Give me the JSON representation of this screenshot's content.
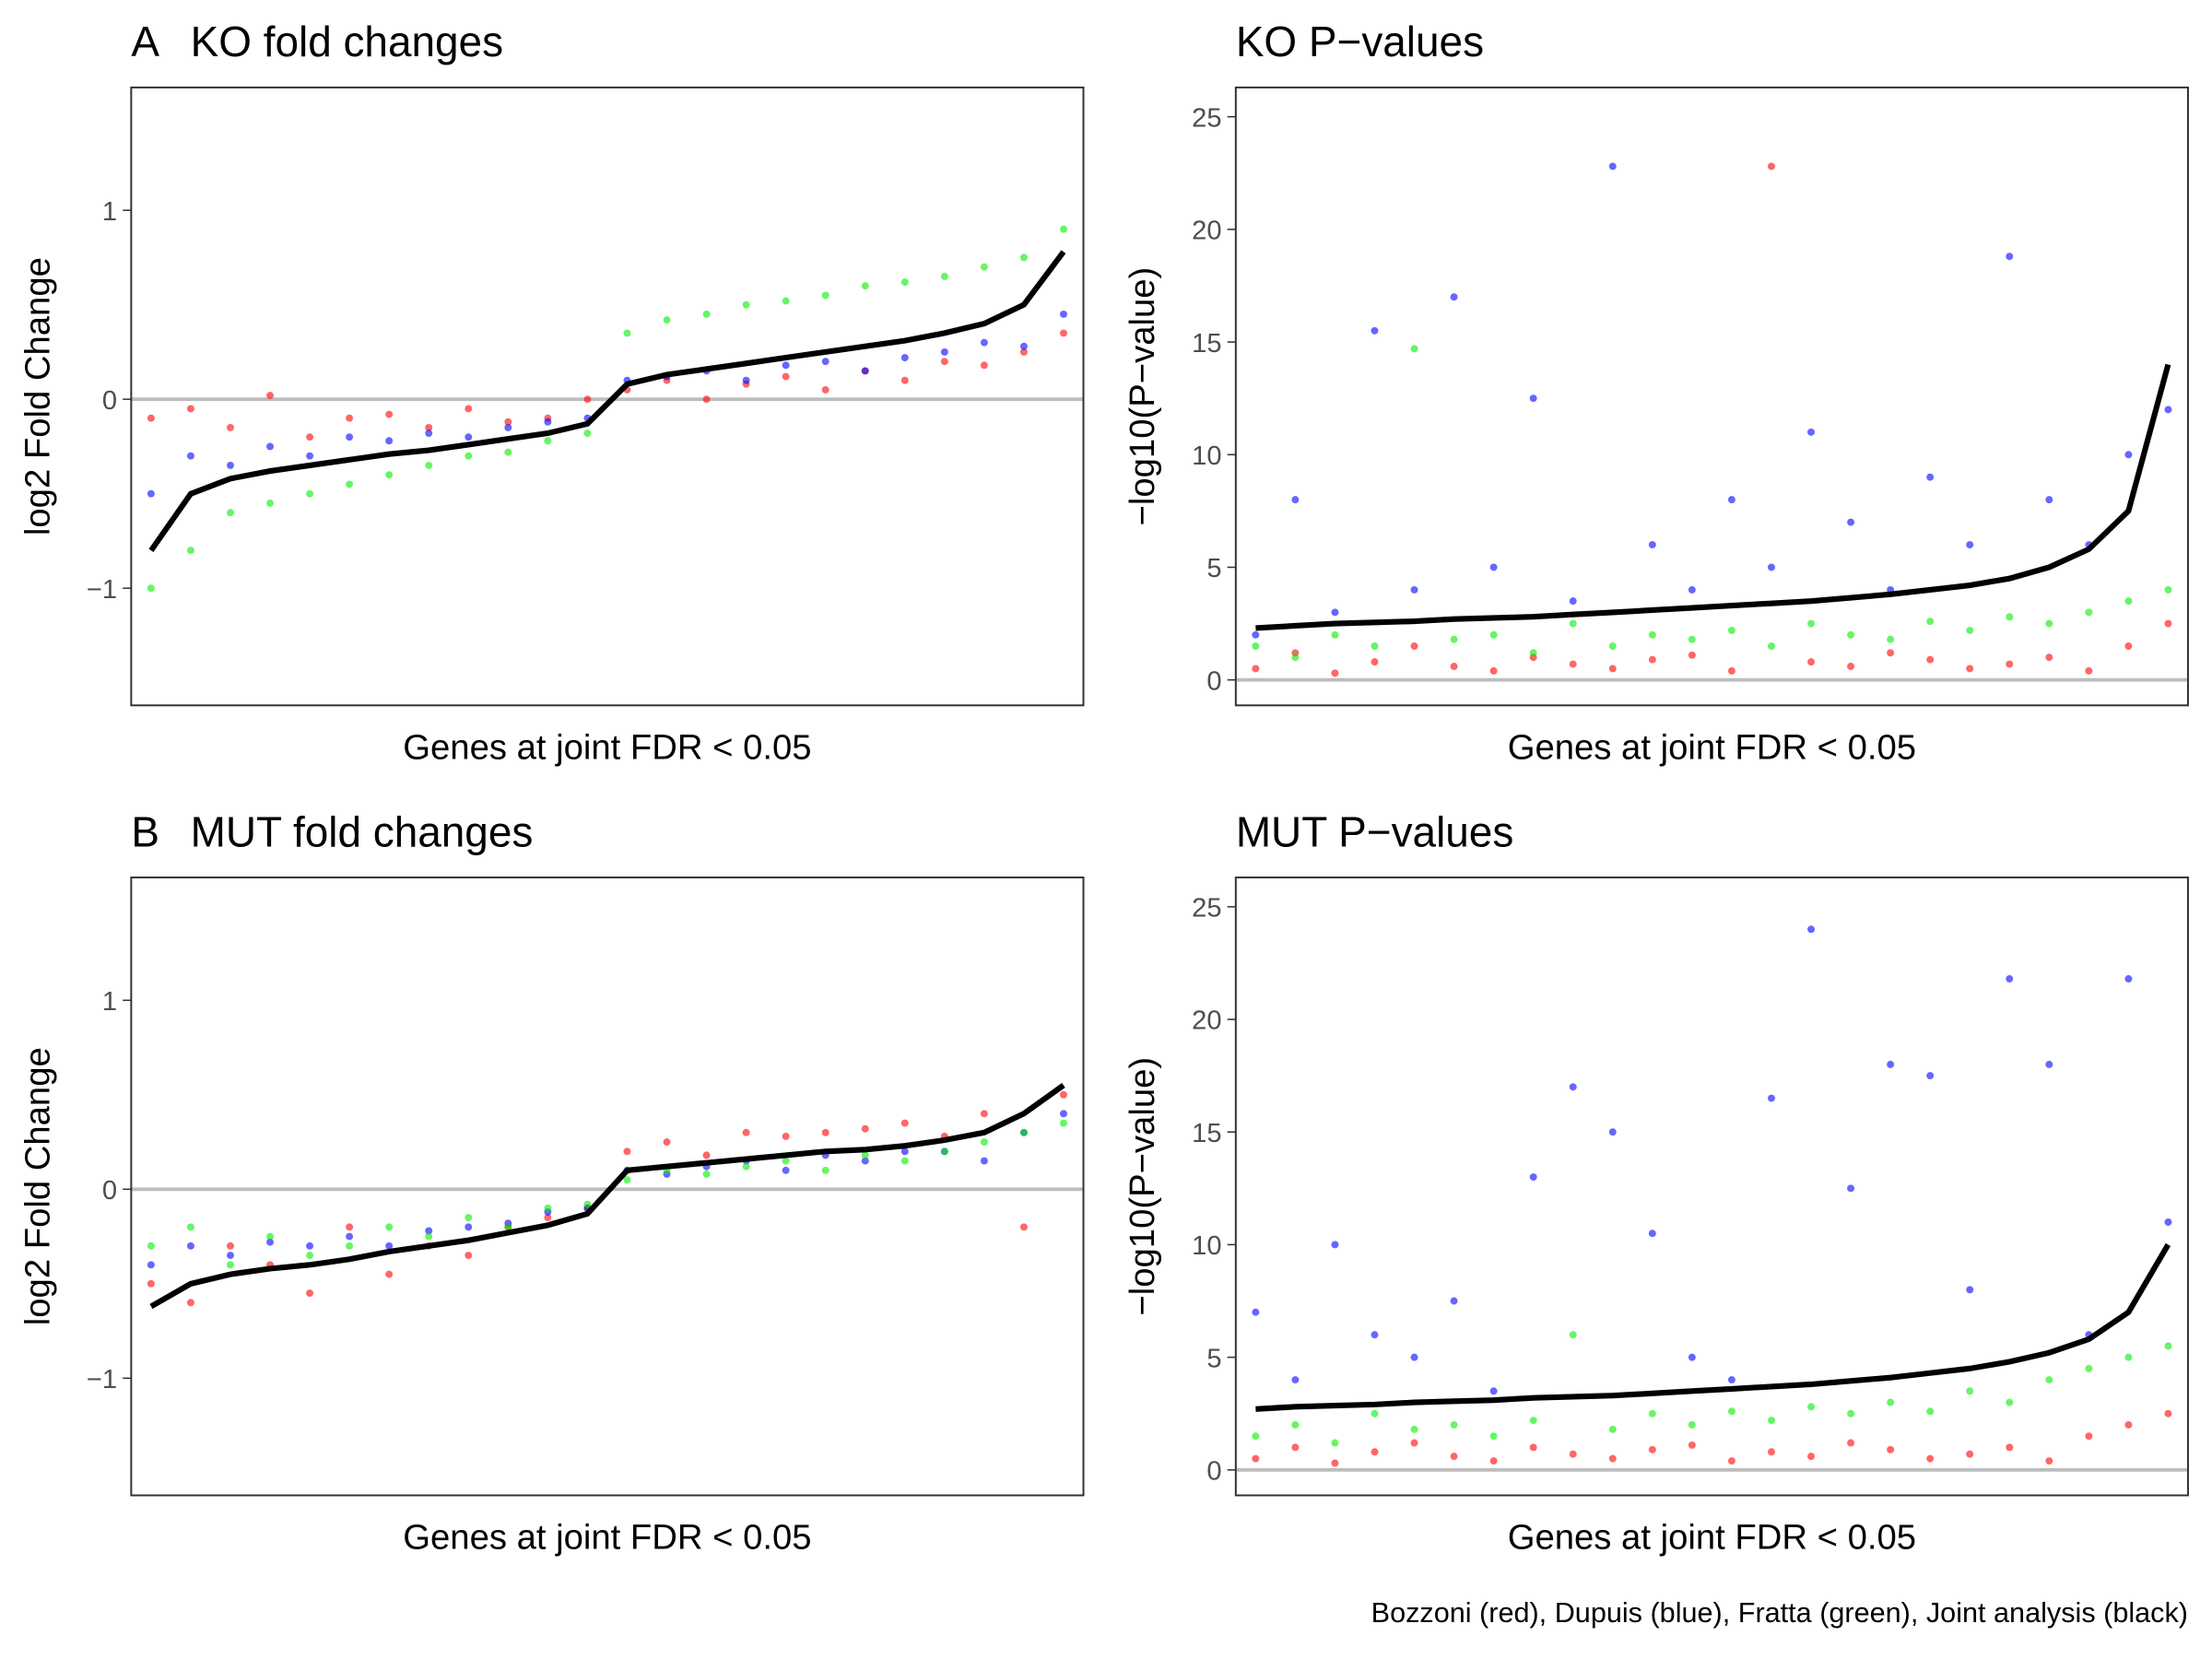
{
  "chart_data": [
    {
      "type": "scatter",
      "tag": "A",
      "title": "KO fold changes",
      "x_label": "Genes at joint FDR < 0.05",
      "y_label": "log2 Fold Change",
      "x": [
        1,
        2,
        3,
        4,
        5,
        6,
        7,
        8,
        9,
        10,
        11,
        12,
        13,
        14,
        15,
        16,
        17,
        18,
        19,
        20,
        21,
        22,
        23,
        24
      ],
      "xlim": [
        0.5,
        24.5
      ],
      "ylim": [
        -1.62,
        1.65
      ],
      "yticks": [
        {
          "value": -1,
          "label": "−1"
        },
        0,
        1
      ],
      "hline": 0,
      "series": [
        {
          "color": "#ff0000",
          "values": [
            -0.1,
            -0.05,
            -0.15,
            0.02,
            -0.2,
            -0.1,
            -0.08,
            -0.15,
            -0.05,
            -0.12,
            -0.1,
            0.0,
            0.05,
            0.1,
            0.0,
            0.08,
            0.12,
            0.05,
            0.15,
            0.1,
            0.2,
            0.18,
            0.25,
            0.35
          ]
        },
        {
          "color": "#0000ff",
          "values": [
            -0.5,
            -0.3,
            -0.35,
            -0.25,
            -0.3,
            -0.2,
            -0.22,
            -0.18,
            -0.2,
            -0.15,
            -0.12,
            -0.1,
            0.1,
            0.12,
            0.15,
            0.1,
            0.18,
            0.2,
            0.15,
            0.22,
            0.25,
            0.3,
            0.28,
            0.45
          ]
        },
        {
          "color": "#00ee00",
          "values": [
            -1.0,
            -0.8,
            -0.6,
            -0.55,
            -0.5,
            -0.45,
            -0.4,
            -0.35,
            -0.3,
            -0.28,
            -0.22,
            -0.18,
            0.35,
            0.42,
            0.45,
            0.5,
            0.52,
            0.55,
            0.6,
            0.62,
            0.65,
            0.7,
            0.75,
            0.9
          ]
        },
        {
          "color": "#000000",
          "line": true,
          "values": [
            -0.8,
            -0.5,
            -0.42,
            -0.38,
            -0.35,
            -0.32,
            -0.29,
            -0.27,
            -0.24,
            -0.21,
            -0.18,
            -0.13,
            0.08,
            0.13,
            0.16,
            0.19,
            0.22,
            0.25,
            0.28,
            0.31,
            0.35,
            0.4,
            0.5,
            0.78
          ]
        }
      ]
    },
    {
      "type": "scatter",
      "title": "KO P−values",
      "x_label": "Genes at joint FDR < 0.05",
      "y_label": "−log10(P−value)",
      "x": [
        1,
        2,
        3,
        4,
        5,
        6,
        7,
        8,
        9,
        10,
        11,
        12,
        13,
        14,
        15,
        16,
        17,
        18,
        19,
        20,
        21,
        22,
        23,
        24
      ],
      "xlim": [
        0.5,
        24.5
      ],
      "ylim": [
        -1.13,
        26.3
      ],
      "yticks": [
        0,
        5,
        10,
        15,
        20,
        25
      ],
      "hline": 0,
      "series": [
        {
          "color": "#ff0000",
          "values": [
            0.5,
            1.2,
            0.3,
            0.8,
            1.5,
            0.6,
            0.4,
            1.0,
            0.7,
            0.5,
            0.9,
            1.1,
            0.4,
            22.8,
            0.8,
            0.6,
            1.2,
            0.9,
            0.5,
            0.7,
            1.0,
            0.4,
            1.5,
            2.5
          ]
        },
        {
          "color": "#0000ff",
          "values": [
            2,
            8,
            3,
            15.5,
            4,
            17,
            5,
            12.5,
            3.5,
            22.8,
            6,
            4,
            8,
            5,
            11,
            7,
            4,
            9,
            6,
            18.8,
            8,
            6,
            10,
            12
          ]
        },
        {
          "color": "#00ee00",
          "values": [
            1.5,
            1,
            2,
            1.5,
            14.7,
            1.8,
            2,
            1.2,
            2.5,
            1.5,
            2,
            1.8,
            2.2,
            1.5,
            2.5,
            2,
            1.8,
            2.6,
            2.2,
            2.8,
            2.5,
            3,
            3.5,
            4
          ]
        },
        {
          "color": "#000000",
          "line": true,
          "values": [
            2.3,
            2.4,
            2.5,
            2.55,
            2.6,
            2.7,
            2.75,
            2.8,
            2.9,
            3.0,
            3.1,
            3.2,
            3.3,
            3.4,
            3.5,
            3.65,
            3.8,
            4.0,
            4.2,
            4.5,
            5.0,
            5.8,
            7.5,
            14
          ]
        }
      ]
    },
    {
      "type": "scatter",
      "tag": "B",
      "title": "MUT fold changes",
      "x_label": "Genes at joint FDR < 0.05",
      "y_label": "log2 Fold Change",
      "x": [
        1,
        2,
        3,
        4,
        5,
        6,
        7,
        8,
        9,
        10,
        11,
        12,
        13,
        14,
        15,
        16,
        17,
        18,
        19,
        20,
        21,
        22,
        23,
        24
      ],
      "xlim": [
        0.5,
        24.5
      ],
      "ylim": [
        -1.62,
        1.65
      ],
      "yticks": [
        {
          "value": -1,
          "label": "−1"
        },
        0,
        1
      ],
      "hline": 0,
      "series": [
        {
          "color": "#ff0000",
          "values": [
            -0.5,
            -0.6,
            -0.3,
            -0.4,
            -0.55,
            -0.2,
            -0.45,
            -0.3,
            -0.35,
            -0.2,
            -0.15,
            -0.1,
            0.2,
            0.25,
            0.18,
            0.3,
            0.28,
            0.3,
            0.32,
            0.35,
            0.28,
            0.4,
            -0.2,
            0.5
          ]
        },
        {
          "color": "#0000ff",
          "values": [
            -0.4,
            -0.3,
            -0.35,
            -0.28,
            -0.3,
            -0.25,
            -0.3,
            -0.22,
            -0.2,
            -0.18,
            -0.12,
            -0.1,
            0.1,
            0.08,
            0.12,
            0.15,
            0.1,
            0.18,
            0.15,
            0.2,
            0.2,
            0.15,
            0.3,
            0.4
          ]
        },
        {
          "color": "#00ee00",
          "values": [
            -0.3,
            -0.2,
            -0.4,
            -0.25,
            -0.35,
            -0.3,
            -0.2,
            -0.25,
            -0.15,
            -0.2,
            -0.1,
            -0.08,
            0.05,
            0.1,
            0.08,
            0.12,
            0.15,
            0.1,
            0.18,
            0.15,
            0.2,
            0.25,
            0.3,
            0.35
          ]
        },
        {
          "color": "#000000",
          "line": true,
          "values": [
            -0.62,
            -0.5,
            -0.45,
            -0.42,
            -0.4,
            -0.37,
            -0.33,
            -0.3,
            -0.27,
            -0.23,
            -0.19,
            -0.13,
            0.1,
            0.12,
            0.14,
            0.16,
            0.18,
            0.2,
            0.21,
            0.23,
            0.26,
            0.3,
            0.4,
            0.55
          ]
        }
      ]
    },
    {
      "type": "scatter",
      "title": "MUT P−values",
      "x_label": "Genes at joint FDR < 0.05",
      "y_label": "−log10(P−value)",
      "x": [
        1,
        2,
        3,
        4,
        5,
        6,
        7,
        8,
        9,
        10,
        11,
        12,
        13,
        14,
        15,
        16,
        17,
        18,
        19,
        20,
        21,
        22,
        23,
        24
      ],
      "xlim": [
        0.5,
        24.5
      ],
      "ylim": [
        -1.13,
        26.3
      ],
      "yticks": [
        0,
        5,
        10,
        15,
        20,
        25
      ],
      "hline": 0,
      "series": [
        {
          "color": "#ff0000",
          "values": [
            0.5,
            1,
            0.3,
            0.8,
            1.2,
            0.6,
            0.4,
            1.0,
            0.7,
            0.5,
            0.9,
            1.1,
            0.4,
            0.8,
            0.6,
            1.2,
            0.9,
            0.5,
            0.7,
            1.0,
            0.4,
            1.5,
            2.0,
            2.5
          ]
        },
        {
          "color": "#0000ff",
          "values": [
            7,
            4,
            10,
            6,
            5,
            7.5,
            3.5,
            13,
            17,
            15,
            10.5,
            5,
            4,
            16.5,
            24,
            12.5,
            18,
            17.5,
            8,
            21.8,
            18,
            6,
            21.8,
            11
          ]
        },
        {
          "color": "#00ee00",
          "values": [
            1.5,
            2,
            1.2,
            2.5,
            1.8,
            2,
            1.5,
            2.2,
            6,
            1.8,
            2.5,
            2,
            2.6,
            2.2,
            2.8,
            2.5,
            3,
            2.6,
            3.5,
            3,
            4,
            4.5,
            5,
            5.5
          ]
        },
        {
          "color": "#000000",
          "line": true,
          "values": [
            2.7,
            2.8,
            2.85,
            2.9,
            3.0,
            3.05,
            3.1,
            3.2,
            3.25,
            3.3,
            3.4,
            3.5,
            3.6,
            3.7,
            3.8,
            3.95,
            4.1,
            4.3,
            4.5,
            4.8,
            5.2,
            5.8,
            7.0,
            10
          ]
        }
      ]
    }
  ],
  "caption": "Bozzoni (red), Dupuis (blue), Fratta (green), Joint analysis (black)"
}
